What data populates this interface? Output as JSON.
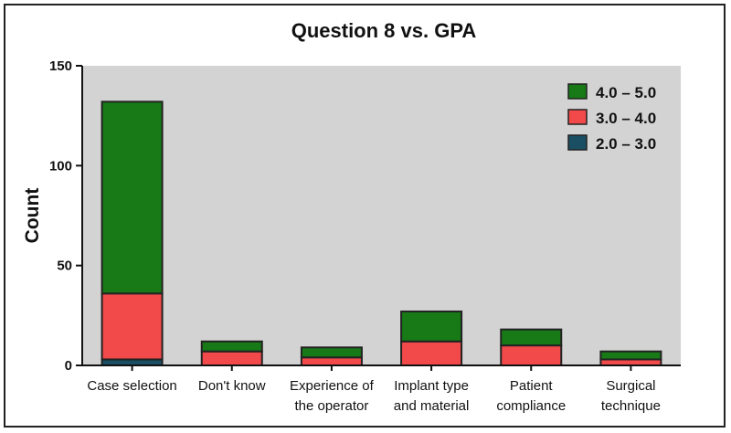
{
  "chart_data": {
    "type": "bar",
    "stacked": true,
    "title": "Question 8 vs. GPA",
    "xlabel": "",
    "ylabel": "Count",
    "ylim": [
      0,
      150
    ],
    "yticks": [
      0,
      50,
      100,
      150
    ],
    "grid": false,
    "legend_position": "top-right",
    "background": "#d3d3d3",
    "categories": [
      [
        "Case selection"
      ],
      [
        "Don't know"
      ],
      [
        "Experience of",
        "the operator"
      ],
      [
        "Implant type",
        "and material"
      ],
      [
        "Patient",
        "compliance"
      ],
      [
        "Surgical",
        "technique"
      ]
    ],
    "series": [
      {
        "name": "2.0 – 3.0",
        "color": "#1a4f63",
        "values": [
          3,
          0,
          0,
          0,
          0,
          0
        ]
      },
      {
        "name": "3.0 – 4.0",
        "color": "#f24a4a",
        "values": [
          33,
          7,
          4,
          12,
          10,
          3
        ]
      },
      {
        "name": "4.0 – 5.0",
        "color": "#177a17",
        "values": [
          96,
          5,
          5,
          15,
          8,
          4
        ]
      }
    ],
    "legend_order": [
      "4.0 – 5.0",
      "3.0 – 4.0",
      "2.0 – 3.0"
    ]
  }
}
